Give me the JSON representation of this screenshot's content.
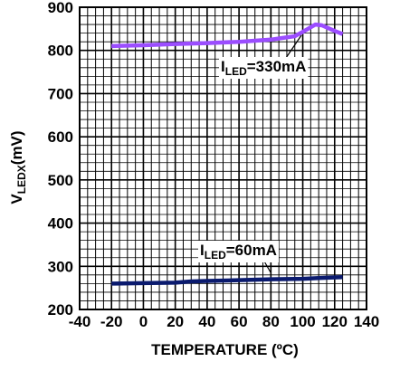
{
  "chart_data": {
    "type": "line",
    "title": "",
    "xlabel": "TEMPERATURE (ºC)",
    "ylabel": {
      "main": "V",
      "sub": "LEDX",
      "tail": "(mV)"
    },
    "xlim": [
      -40,
      140
    ],
    "ylim": [
      200,
      900
    ],
    "x_ticks": [
      -40,
      -20,
      0,
      20,
      40,
      60,
      80,
      100,
      120,
      140
    ],
    "y_ticks": [
      200,
      300,
      400,
      500,
      600,
      700,
      800,
      900
    ],
    "x_tick_labels": [
      "-40",
      "-20",
      "0",
      "20",
      "40",
      "60",
      "80",
      "100",
      "120",
      "140"
    ],
    "y_tick_labels": [
      "200",
      "300",
      "400",
      "500",
      "600",
      "700",
      "800",
      "900"
    ],
    "grid": true,
    "series": [
      {
        "name": "I_LED=330mA",
        "color": "#9b4dff",
        "x": [
          -20,
          0,
          20,
          40,
          60,
          80,
          95,
          100,
          108,
          112,
          120,
          125
        ],
        "y": [
          810,
          812,
          815,
          817,
          820,
          825,
          833,
          843,
          860,
          858,
          845,
          838
        ]
      },
      {
        "name": "I_LED=60mA",
        "color": "#0a1a6e",
        "x": [
          -20,
          0,
          20,
          30,
          40,
          60,
          80,
          100,
          110,
          125
        ],
        "y": [
          260,
          261,
          262,
          265,
          266,
          268,
          270,
          271,
          273,
          275
        ]
      }
    ],
    "annotations": [
      {
        "main": "I",
        "sub": "LED",
        "tail": "=330mA",
        "series": 0
      },
      {
        "main": "I",
        "sub": "LED",
        "tail": "=60mA",
        "series": 1
      }
    ]
  }
}
